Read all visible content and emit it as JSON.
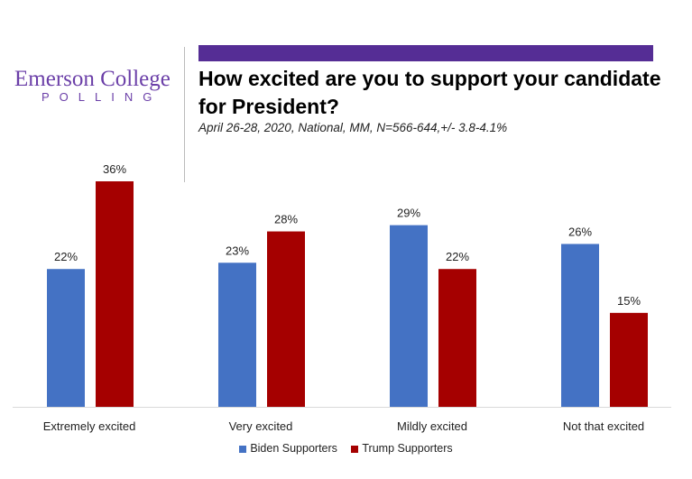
{
  "logo": {
    "line1": "Emerson College",
    "line2": "POLLING"
  },
  "header": {
    "title": "How excited are you to support your candidate for President?",
    "subtitle": "April 26-28, 2020, National, MM, N=566-644,+/-  3.8-4.1%"
  },
  "colors": {
    "accent": "#552d95",
    "biden": "#4472c4",
    "trump": "#a50000"
  },
  "chart_data": {
    "type": "bar",
    "categories": [
      "Extremely excited",
      "Very excited",
      "Mildly excited",
      "Not that excited"
    ],
    "series": [
      {
        "name": "Biden Supporters",
        "values": [
          22,
          23,
          29,
          26
        ],
        "labels": [
          "22%",
          "23%",
          "29%",
          "26%"
        ]
      },
      {
        "name": "Trump Supporters",
        "values": [
          36,
          28,
          22,
          15
        ],
        "labels": [
          "36%",
          "28%",
          "22%",
          "15%"
        ]
      }
    ],
    "ylim": [
      0,
      36
    ],
    "grid": false,
    "legend": "bottom"
  }
}
